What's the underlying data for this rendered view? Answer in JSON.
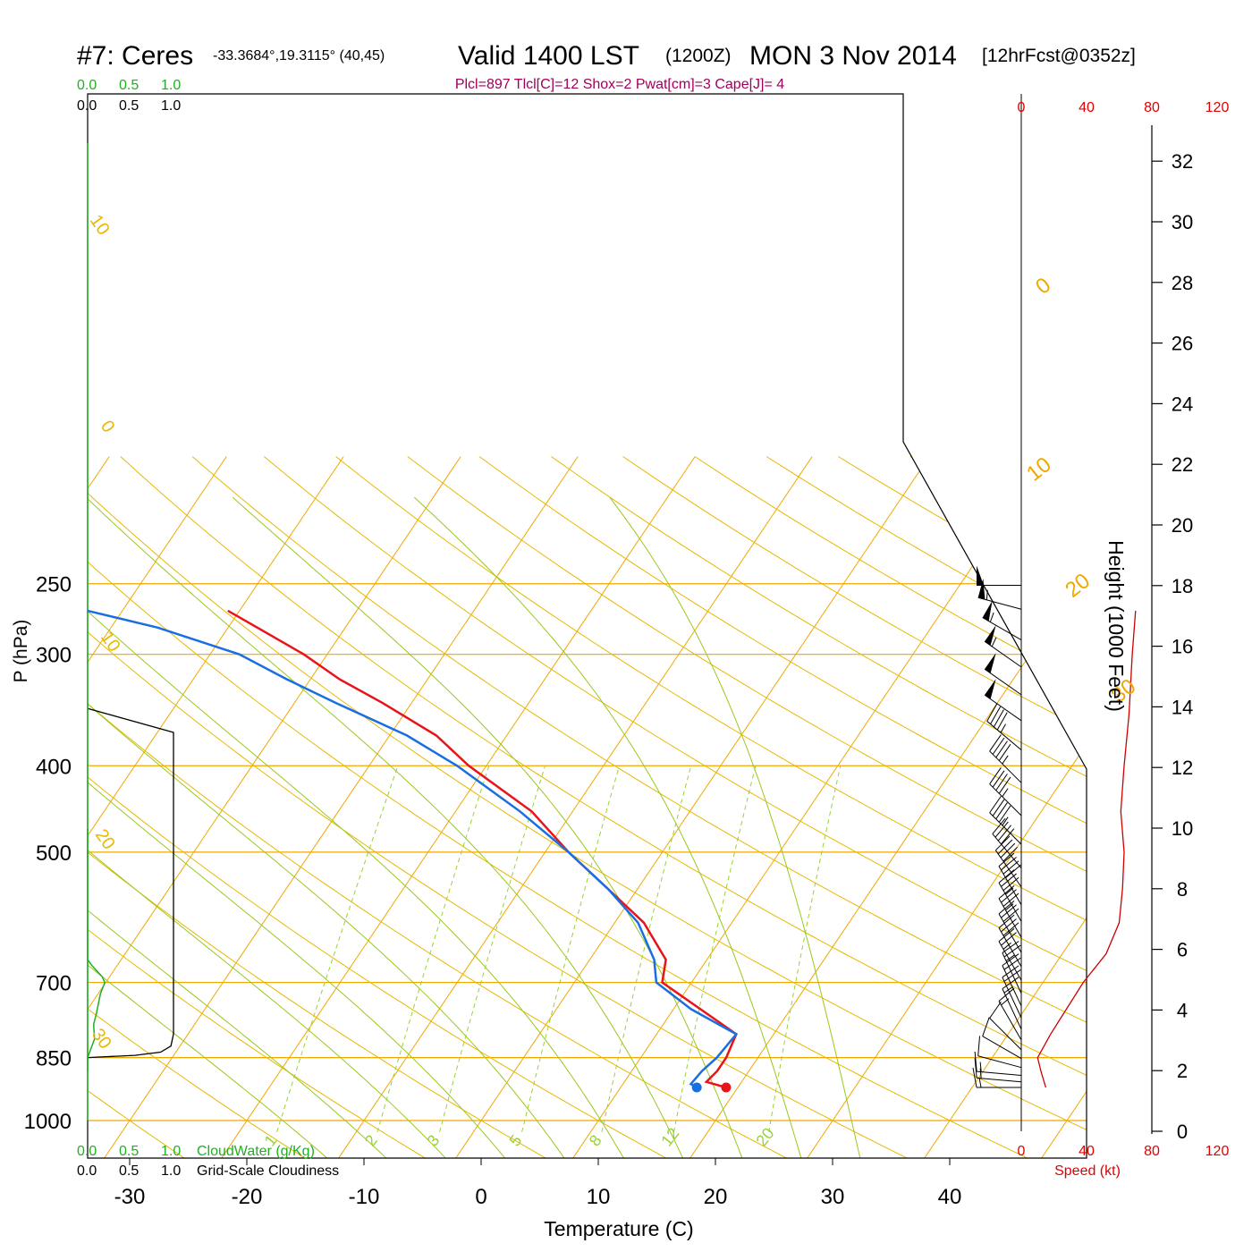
{
  "header": {
    "station": "#7: Ceres",
    "coords": "-33.3684°,19.3115° (40,45)",
    "valid": "Valid 1400 LST",
    "utc": "(1200Z)",
    "date": "MON 3 Nov 2014",
    "forecast": "[12hrFcst@0352z]",
    "indices": "Plcl=897 Tlcl[C]=12 Shox=2 Pwat[cm]=3 Cape[J]= 4"
  },
  "colors": {
    "temperature": "#e8141a",
    "dewpoint": "#1a6fe0",
    "isotherm": "#f0a800",
    "dry_adiabat": "#e8b800",
    "moist_adiabat": "#9ac81a",
    "mixing_ratio": "#9ad234",
    "cloud_water": "#20b020",
    "speed": "#cc0000",
    "indices": "#a0005a"
  },
  "chart_data": {
    "type": "skew-t",
    "xlabel": "Temperature (C)",
    "ylabel": "P (hPa)",
    "y2label": "Height (1000 Feet)",
    "temp_ticks": [
      "-30",
      "-20",
      "-10",
      "0",
      "10",
      "20",
      "30",
      "40"
    ],
    "temp_tick_values": [
      -30,
      -20,
      -10,
      0,
      10,
      20,
      30,
      40
    ],
    "pressure_ticks": [
      "250",
      "300",
      "400",
      "500",
      "700",
      "850",
      "1000"
    ],
    "pressure_tick_values": [
      250,
      300,
      400,
      500,
      700,
      850,
      1000
    ],
    "height_ticks": [
      "0",
      "2",
      "4",
      "6",
      "8",
      "10",
      "12",
      "14",
      "16",
      "18",
      "20",
      "22",
      "24",
      "26",
      "28",
      "30",
      "32"
    ],
    "isotherm_labels": [
      "0",
      "10",
      "20",
      "30"
    ],
    "dry_adiabat_labels": [
      "10",
      "0",
      "10",
      "20",
      "30"
    ],
    "mixing_ratio_labels": [
      "1",
      "2",
      "3",
      "5",
      "8",
      "12",
      "20"
    ],
    "cloud_top_labels": [
      "0.0",
      "0.5",
      "1.0"
    ],
    "cloud_bottom_labels": [
      "0.0",
      "0.5",
      "1.0"
    ],
    "cloudwater_label": "CloudWater (g/Kg)",
    "cloudiness_label": "Grid-Scale Cloudiness",
    "speed_top_labels": [
      "0",
      "40",
      "80",
      "120"
    ],
    "speed_bottom_labels": [
      "0",
      "40",
      "80",
      "120"
    ],
    "speed_label": "Speed (kt)",
    "temperature_profile": [
      {
        "p": 918,
        "t": 19.0
      },
      {
        "p": 905,
        "t": 17.0
      },
      {
        "p": 880,
        "t": 17.3
      },
      {
        "p": 850,
        "t": 17.3
      },
      {
        "p": 800,
        "t": 16.8
      },
      {
        "p": 700,
        "t": 7.5
      },
      {
        "p": 660,
        "t": 6.5
      },
      {
        "p": 600,
        "t": 2.5
      },
      {
        "p": 550,
        "t": -2.5
      },
      {
        "p": 500,
        "t": -8.0
      },
      {
        "p": 450,
        "t": -13.5
      },
      {
        "p": 400,
        "t": -21.5
      },
      {
        "p": 370,
        "t": -26.0
      },
      {
        "p": 340,
        "t": -32.5
      },
      {
        "p": 320,
        "t": -37.5
      },
      {
        "p": 300,
        "t": -42.0
      },
      {
        "p": 280,
        "t": -47.5
      },
      {
        "p": 268,
        "t": -51.0
      }
    ],
    "dewpoint_profile": [
      {
        "p": 918,
        "t": 16.5
      },
      {
        "p": 910,
        "t": 15.8
      },
      {
        "p": 880,
        "t": 16.0
      },
      {
        "p": 850,
        "t": 16.5
      },
      {
        "p": 800,
        "t": 16.8
      },
      {
        "p": 750,
        "t": 11.5
      },
      {
        "p": 700,
        "t": 7.0
      },
      {
        "p": 660,
        "t": 5.5
      },
      {
        "p": 600,
        "t": 2.0
      },
      {
        "p": 550,
        "t": -2.5
      },
      {
        "p": 500,
        "t": -8.0
      },
      {
        "p": 450,
        "t": -14.5
      },
      {
        "p": 400,
        "t": -22.5
      },
      {
        "p": 370,
        "t": -28.5
      },
      {
        "p": 340,
        "t": -36.5
      },
      {
        "p": 320,
        "t": -42.0
      },
      {
        "p": 300,
        "t": -47.5
      },
      {
        "p": 280,
        "t": -56.0
      },
      {
        "p": 268,
        "t": -63.0
      }
    ],
    "cloudiness_profile": [
      {
        "p": 850,
        "v": 0.0
      },
      {
        "p": 845,
        "v": 0.55
      },
      {
        "p": 838,
        "v": 0.85
      },
      {
        "p": 825,
        "v": 0.97
      },
      {
        "p": 800,
        "v": 1.0
      },
      {
        "p": 700,
        "v": 1.0
      },
      {
        "p": 680,
        "v": 1.0
      },
      {
        "p": 500,
        "v": 1.0
      },
      {
        "p": 367,
        "v": 1.0
      },
      {
        "p": 345,
        "v": 0.0
      }
    ],
    "cloudwater_profile": [
      {
        "p": 1000,
        "v": 0.0
      },
      {
        "p": 850,
        "v": 0.0
      },
      {
        "p": 810,
        "v": 0.08
      },
      {
        "p": 780,
        "v": 0.07
      },
      {
        "p": 760,
        "v": 0.1
      },
      {
        "p": 720,
        "v": 0.15
      },
      {
        "p": 700,
        "v": 0.2
      },
      {
        "p": 690,
        "v": 0.17
      },
      {
        "p": 670,
        "v": 0.05
      },
      {
        "p": 660,
        "v": 0.0
      },
      {
        "p": 500,
        "v": 0.0
      },
      {
        "p": 470,
        "v": 0.0
      }
    ],
    "speed_profile": [
      {
        "p": 918,
        "v": 15
      },
      {
        "p": 880,
        "v": 12
      },
      {
        "p": 850,
        "v": 10
      },
      {
        "p": 800,
        "v": 18
      },
      {
        "p": 700,
        "v": 38
      },
      {
        "p": 650,
        "v": 52
      },
      {
        "p": 600,
        "v": 60
      },
      {
        "p": 550,
        "v": 62
      },
      {
        "p": 500,
        "v": 63
      },
      {
        "p": 450,
        "v": 61
      },
      {
        "p": 400,
        "v": 63
      },
      {
        "p": 350,
        "v": 66
      },
      {
        "p": 300,
        "v": 68
      },
      {
        "p": 268,
        "v": 70
      }
    ],
    "wind_barbs": [
      {
        "p": 918,
        "dir": 270,
        "spd": 15
      },
      {
        "p": 905,
        "dir": 275,
        "spd": 15
      },
      {
        "p": 890,
        "dir": 275,
        "spd": 15
      },
      {
        "p": 872,
        "dir": 285,
        "spd": 10
      },
      {
        "p": 852,
        "dir": 300,
        "spd": 10
      },
      {
        "p": 833,
        "dir": 315,
        "spd": 10
      },
      {
        "p": 812,
        "dir": 330,
        "spd": 15
      },
      {
        "p": 790,
        "dir": 335,
        "spd": 15
      },
      {
        "p": 767,
        "dir": 335,
        "spd": 20
      },
      {
        "p": 744,
        "dir": 335,
        "spd": 20
      },
      {
        "p": 720,
        "dir": 335,
        "spd": 25
      },
      {
        "p": 696,
        "dir": 330,
        "spd": 25
      },
      {
        "p": 672,
        "dir": 330,
        "spd": 30
      },
      {
        "p": 648,
        "dir": 330,
        "spd": 30
      },
      {
        "p": 623,
        "dir": 330,
        "spd": 35
      },
      {
        "p": 598,
        "dir": 330,
        "spd": 35
      },
      {
        "p": 573,
        "dir": 330,
        "spd": 40
      },
      {
        "p": 547,
        "dir": 325,
        "spd": 40
      },
      {
        "p": 521,
        "dir": 320,
        "spd": 40
      },
      {
        "p": 490,
        "dir": 315,
        "spd": 45
      },
      {
        "p": 455,
        "dir": 315,
        "spd": 45
      },
      {
        "p": 418,
        "dir": 315,
        "spd": 45
      },
      {
        "p": 384,
        "dir": 310,
        "spd": 45
      },
      {
        "p": 356,
        "dir": 305,
        "spd": 50
      },
      {
        "p": 333,
        "dir": 305,
        "spd": 50
      },
      {
        "p": 310,
        "dir": 305,
        "spd": 55
      },
      {
        "p": 289,
        "dir": 300,
        "spd": 55
      },
      {
        "p": 267,
        "dir": 285,
        "spd": 55
      },
      {
        "p": 251,
        "dir": 270,
        "spd": 50
      }
    ]
  }
}
